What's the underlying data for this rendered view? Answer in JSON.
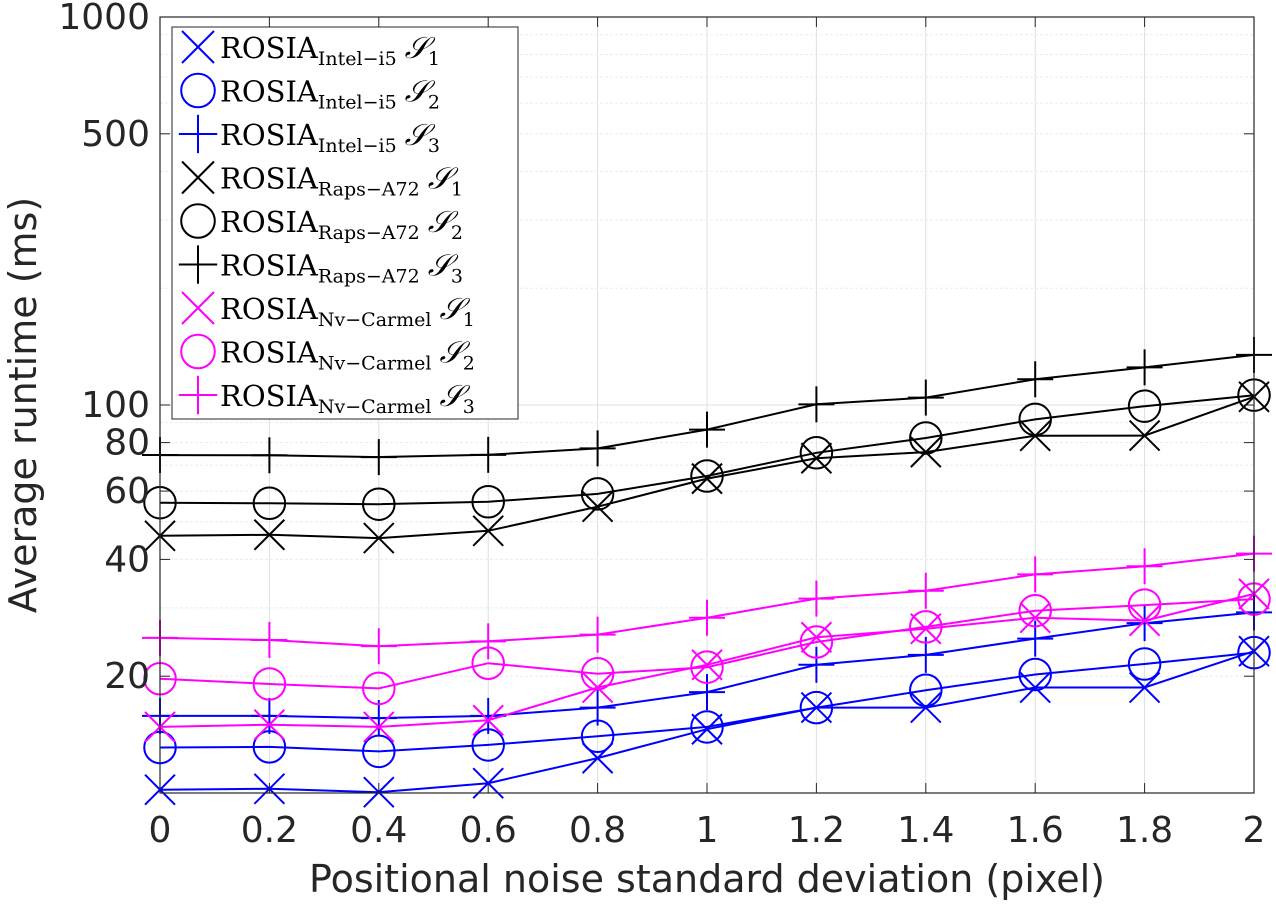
{
  "chart_data": {
    "type": "line",
    "title": "",
    "xlabel": "Positional noise standard deviation (pixel)",
    "ylabel": "Average runtime (ms)",
    "yscale": "log",
    "xlim": [
      0,
      2
    ],
    "ylim": [
      10,
      1000
    ],
    "grid": true,
    "legend_position": "top-left",
    "x": [
      0,
      0.2,
      0.4,
      0.6,
      0.8,
      1,
      1.2,
      1.4,
      1.6,
      1.8,
      2
    ],
    "x_tick_labels": [
      "0",
      "0.2",
      "0.4",
      "0.6",
      "0.8",
      "1",
      "1.2",
      "1.4",
      "1.6",
      "1.8",
      "2"
    ],
    "y_ticks": [
      20,
      40,
      60,
      80,
      100,
      500,
      1000
    ],
    "y_tick_labels": [
      "20",
      "40",
      "60",
      "80",
      "100",
      "500",
      "1000"
    ],
    "colors": {
      "blue": "#0000ff",
      "black": "#000000",
      "magenta": "#ff00ff"
    },
    "series": [
      {
        "name": "ROSIA",
        "subscript": "Intel−i5",
        "set": "𝒮",
        "set_index": "1",
        "marker": "x",
        "color": "#0000ff",
        "values": [
          10.2,
          10.25,
          10.05,
          10.6,
          12.3,
          14.6,
          16.6,
          16.6,
          18.7,
          18.7,
          23.2
        ]
      },
      {
        "name": "ROSIA",
        "subscript": "Intel−i5",
        "set": "𝒮",
        "set_index": "2",
        "marker": "o",
        "color": "#0000ff",
        "values": [
          13.1,
          13.15,
          12.8,
          13.3,
          14.0,
          14.8,
          16.6,
          18.4,
          20.2,
          21.5,
          23.0
        ]
      },
      {
        "name": "ROSIA",
        "subscript": "Intel−i5",
        "set": "𝒮",
        "set_index": "3",
        "marker": "+",
        "color": "#0000ff",
        "values": [
          15.8,
          15.8,
          15.6,
          15.8,
          16.6,
          18.2,
          21.4,
          22.7,
          25.0,
          27.4,
          29.2
        ]
      },
      {
        "name": "ROSIA",
        "subscript": "Raps−A72",
        "set": "𝒮",
        "set_index": "1",
        "marker": "x",
        "color": "#000000",
        "values": [
          46.0,
          46.3,
          45.4,
          47.4,
          54.7,
          64.6,
          72.9,
          75.6,
          83.3,
          83.4,
          105.0
        ]
      },
      {
        "name": "ROSIA",
        "subscript": "Raps−A72",
        "set": "𝒮",
        "set_index": "2",
        "marker": "o",
        "color": "#000000",
        "values": [
          56.0,
          55.8,
          55.5,
          56.3,
          59.0,
          65.6,
          75.3,
          82.2,
          91.8,
          99.3,
          106.0
        ]
      },
      {
        "name": "ROSIA",
        "subscript": "Raps−A72",
        "set": "𝒮",
        "set_index": "3",
        "marker": "+",
        "color": "#000000",
        "values": [
          74.3,
          74.2,
          73.4,
          74.4,
          77.3,
          86.4,
          100.4,
          104.5,
          116.5,
          125.0,
          134.6
        ]
      },
      {
        "name": "ROSIA",
        "subscript": "Nv−Carmel",
        "set": "𝒮",
        "set_index": "1",
        "marker": "x",
        "color": "#ff00ff",
        "values": [
          14.8,
          15.0,
          14.8,
          15.4,
          18.7,
          21.4,
          25.2,
          26.5,
          28.3,
          27.8,
          32.6
        ]
      },
      {
        "name": "ROSIA",
        "subscript": "Nv−Carmel",
        "set": "𝒮",
        "set_index": "2",
        "marker": "o",
        "color": "#ff00ff",
        "values": [
          19.7,
          19.1,
          18.6,
          21.6,
          20.3,
          21.1,
          24.5,
          26.8,
          29.5,
          30.5,
          31.6
        ]
      },
      {
        "name": "ROSIA",
        "subscript": "Nv−Carmel",
        "set": "𝒮",
        "set_index": "3",
        "marker": "+",
        "color": "#ff00ff",
        "values": [
          25.1,
          24.8,
          23.9,
          24.6,
          25.6,
          28.3,
          31.7,
          33.2,
          36.6,
          38.4,
          41.4
        ]
      }
    ]
  }
}
